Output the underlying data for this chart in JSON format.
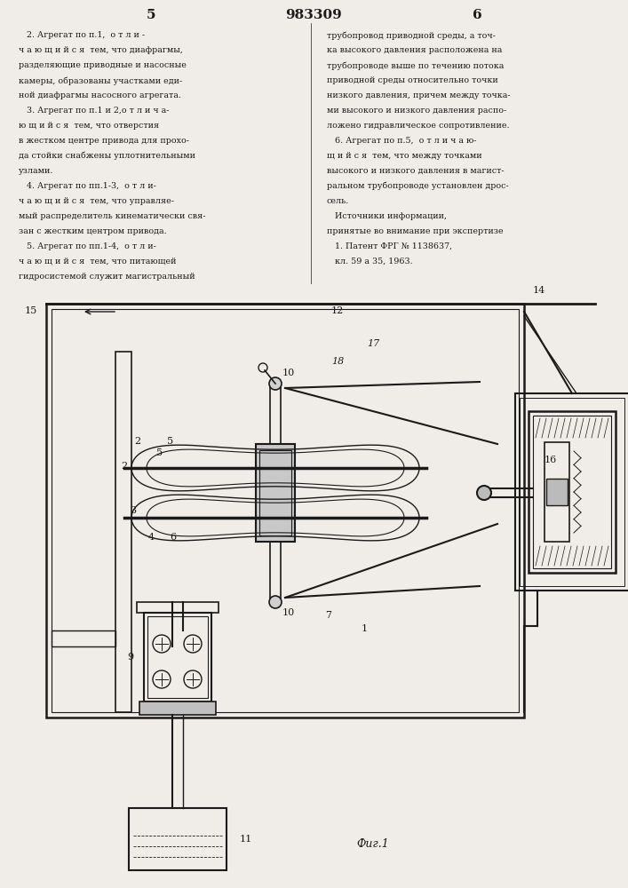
{
  "bg_color": "#f0ede8",
  "line_color": "#1a1a1a",
  "text_color": "#1a1a1a",
  "page_number_left": "5",
  "page_number_center": "983309",
  "page_number_right": "6",
  "fig_label": "Фиг.1",
  "left_column_text": [
    "   2. Агрегат по п.1,  о т л и -",
    "ч а ю щ и й с я  тем, что диафрагмы,",
    "разделяющие приводные и насосные",
    "камеры, образованы участками еди-",
    "ной диафрагмы насосного агрегата.",
    "   3. Агрегат по п.1 и 2,о т л и ч а-",
    "ю щ и й с я  тем, что отверстия",
    "в жестком центре привода для прохо-",
    "да стойки снабжены уплотнительными",
    "узлами.",
    "   4. Агрегат по пп.1-3,  о т л и-",
    "ч а ю щ и й с я  тем, что управляе-",
    "мый распределитель кинематически свя-",
    "зан с жестким центром привода.",
    "   5. Агрегат по пп.1-4,  о т л и-",
    "ч а ю щ и й с я  тем, что питающей",
    "гидросистемой служит магистральный"
  ],
  "right_column_text": [
    "трубопровод приводной среды, а точ-",
    "ка высокого давления расположена на",
    "трубопроводе выше по течению потока",
    "приводной среды относительно точки",
    "низкого давления, причем между точка-",
    "ми высокого и низкого давления распо-",
    "ложено гидравлическое сопротивление.",
    "   6. Агрегат по п.5,  о т л и ч а ю-",
    "щ и й с я  тем, что между точками",
    "высокого и низкого давления в магист-",
    "ральном трубопроводе установлен дрос-",
    "сель.",
    "   Источники информации,",
    "принятые во внимание при экспертизе",
    "   1. Патент ФРГ № 1138637,",
    "   кл. 59 а 35, 1963."
  ]
}
